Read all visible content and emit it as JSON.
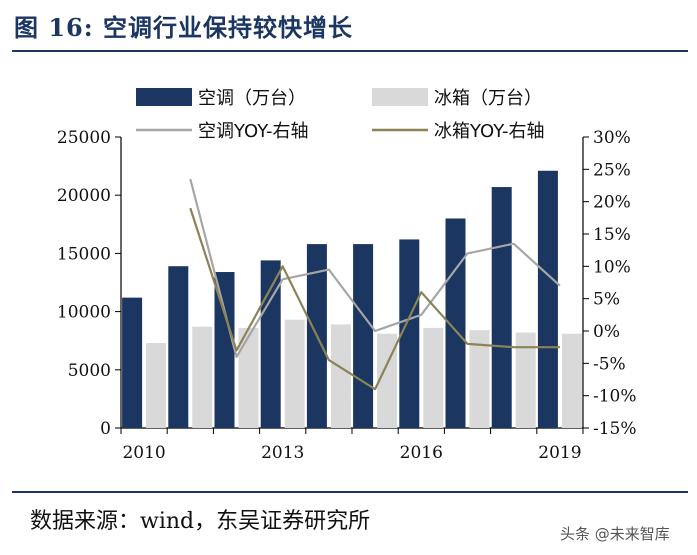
{
  "figure": {
    "title": "图 16:  空调行业保持较快增长",
    "source": "数据来源：wind，东吴证券研究所",
    "watermark": "头条 @未来智库"
  },
  "chart_data": {
    "type": "bar",
    "x": [
      2010,
      2011,
      2012,
      2013,
      2014,
      2015,
      2016,
      2017,
      2018,
      2019
    ],
    "x_tick_labels": [
      "2010",
      "2013",
      "2016",
      "2019"
    ],
    "x_tick_years": [
      2010,
      2013,
      2016,
      2019
    ],
    "series": [
      {
        "name": "空调（万台）",
        "kind": "bar",
        "axis": "left",
        "color": "#1c3662",
        "values": [
          11200,
          13900,
          13400,
          14400,
          15800,
          15800,
          16200,
          18000,
          20700,
          22100
        ]
      },
      {
        "name": "冰箱（万台）",
        "kind": "bar",
        "axis": "left",
        "color": "#d9d9d9",
        "values": [
          7300,
          8700,
          8600,
          9300,
          8900,
          8100,
          8600,
          8400,
          8200,
          8100
        ]
      },
      {
        "name": "空调YOY-右轴",
        "kind": "line",
        "axis": "right",
        "color": "#a6a6a6",
        "values": [
          null,
          23.5,
          -4.0,
          8.0,
          9.5,
          0.0,
          2.5,
          12.0,
          13.5,
          7.0
        ]
      },
      {
        "name": "冰箱YOY-右轴",
        "kind": "line",
        "axis": "right",
        "color": "#8b8355",
        "values": [
          null,
          19.0,
          -3.0,
          10.0,
          -4.5,
          -9.0,
          6.0,
          -2.0,
          -2.5,
          -2.5
        ]
      }
    ],
    "left_axis": {
      "min": 0,
      "max": 25000,
      "ticks": [
        0,
        5000,
        10000,
        15000,
        20000,
        25000
      ],
      "tick_labels": [
        "0",
        "5000",
        "10000",
        "15000",
        "20000",
        "25000"
      ]
    },
    "right_axis": {
      "min": -15,
      "max": 30,
      "ticks": [
        -15,
        -10,
        -5,
        0,
        5,
        10,
        15,
        20,
        25,
        30
      ],
      "tick_labels": [
        "-15%",
        "-10%",
        "-5%",
        "0%",
        "5%",
        "10%",
        "15%",
        "20%",
        "25%",
        "30%"
      ]
    },
    "legend_position": "top",
    "grid": false
  }
}
